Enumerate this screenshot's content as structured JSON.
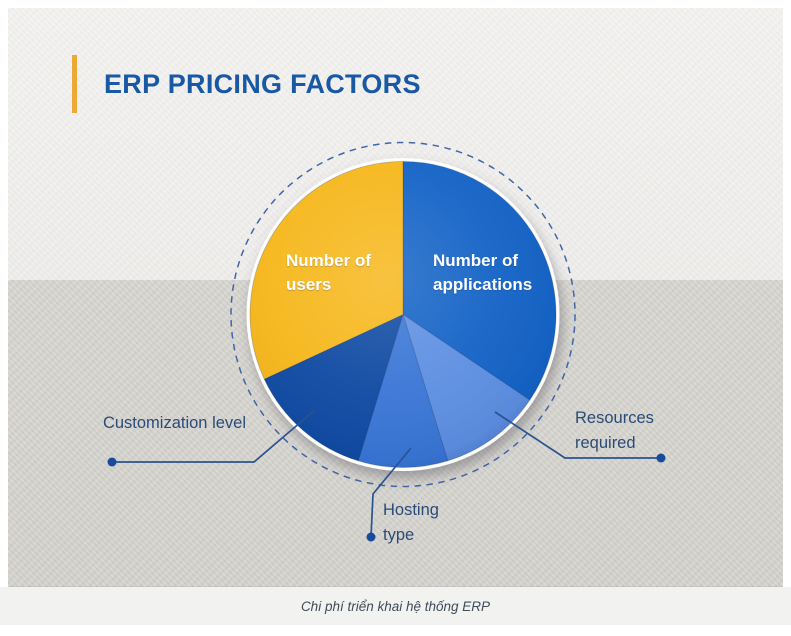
{
  "header": {
    "title": "ERP PRICING FACTORS",
    "title_color": "#1858a4",
    "accent_bar_color": "#ebaa36"
  },
  "chart_data": {
    "type": "pie",
    "title": "ERP PRICING FACTORS",
    "start_angle_deg": 0,
    "direction": "clockwise",
    "slices": [
      {
        "label": "Number of applications",
        "angle_deg": 124,
        "percent": 34.4,
        "color": "#1463c6",
        "label_inside": true,
        "label_color": "#ffffff"
      },
      {
        "label": "Resources required",
        "angle_deg": 39,
        "percent": 10.8,
        "color": "#5e8fe2",
        "label_inside": false,
        "label_color": "#2b4b77"
      },
      {
        "label": "Hosting type",
        "angle_deg": 34,
        "percent": 9.5,
        "color": "#3a76d6",
        "label_inside": false,
        "label_color": "#2b4b77"
      },
      {
        "label": "Customization level",
        "angle_deg": 48,
        "percent": 13.3,
        "color": "#0f4aa2",
        "label_inside": false,
        "label_color": "#2b4b77"
      },
      {
        "label": "Number of users",
        "angle_deg": 115,
        "percent": 32.0,
        "color": "#f6b71b",
        "label_inside": true,
        "label_color": "#ffffff"
      }
    ],
    "legend_position": "none",
    "grid": false,
    "decoration": {
      "dashed_ring_color": "#3f66a6",
      "leader_line_color": "#2a5391",
      "leader_dot_color": "#1a4a9c"
    }
  },
  "caption": {
    "text": "Chi phí triển khai hệ thống ERP"
  }
}
